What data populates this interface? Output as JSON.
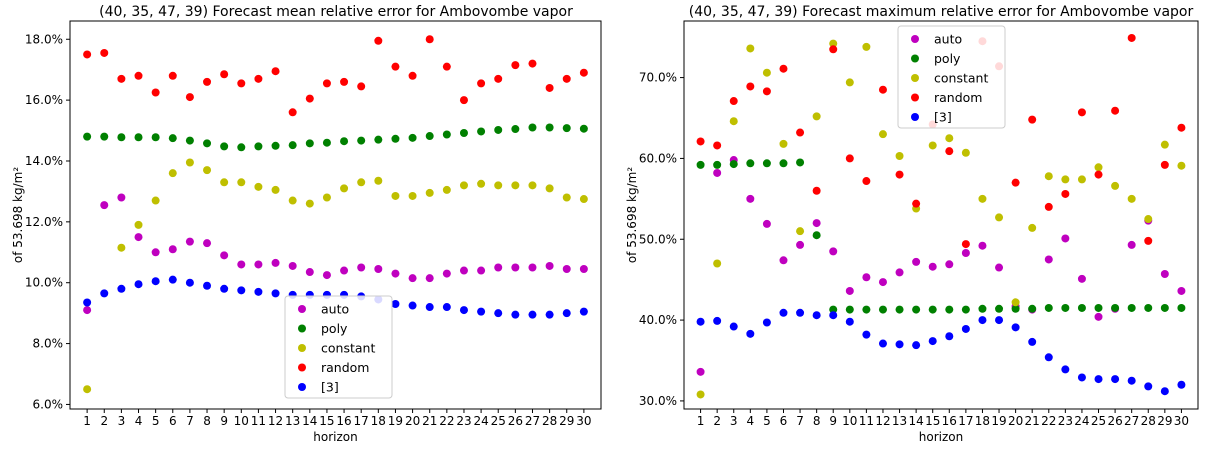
{
  "chart_data": [
    {
      "type": "scatter",
      "title": "(40, 35, 47, 39) Forecast mean relative error for Ambovombe vapor",
      "xlabel": "horizon",
      "ylabel": "of 53.698 kg/m²",
      "x": [
        1,
        2,
        3,
        4,
        5,
        6,
        7,
        8,
        9,
        10,
        11,
        12,
        13,
        14,
        15,
        16,
        17,
        18,
        19,
        20,
        21,
        22,
        23,
        24,
        25,
        26,
        27,
        28,
        29,
        30
      ],
      "xlim": [
        0,
        31
      ],
      "ylim": [
        5.85,
        18.6
      ],
      "yticks": [
        6,
        8,
        10,
        12,
        14,
        16,
        18
      ],
      "ytick_labels": [
        "6.0%",
        "8.0%",
        "10.0%",
        "12.0%",
        "14.0%",
        "16.0%",
        "18.0%"
      ],
      "y_unit": "%",
      "grid": false,
      "legend_position": "lower-center",
      "series": [
        {
          "name": "auto",
          "color": "#bf00bf",
          "values": [
            9.1,
            12.55,
            12.8,
            11.5,
            11.0,
            11.1,
            11.35,
            11.3,
            10.9,
            10.6,
            10.6,
            10.65,
            10.55,
            10.35,
            10.25,
            10.4,
            10.5,
            10.45,
            10.3,
            10.15,
            10.15,
            10.3,
            10.4,
            10.4,
            10.5,
            10.5,
            10.5,
            10.55,
            10.45,
            10.45
          ]
        },
        {
          "name": "poly",
          "color": "#008000",
          "values": [
            14.8,
            14.8,
            14.78,
            14.78,
            14.78,
            14.75,
            14.67,
            14.58,
            14.48,
            14.45,
            14.48,
            14.5,
            14.52,
            14.58,
            14.6,
            14.65,
            14.67,
            14.7,
            14.73,
            14.76,
            14.82,
            14.87,
            14.92,
            14.97,
            15.02,
            15.05,
            15.1,
            15.1,
            15.08,
            15.06
          ]
        },
        {
          "name": "constant",
          "color": "#bfbf00",
          "values": [
            6.5,
            null,
            11.15,
            11.9,
            12.7,
            13.6,
            13.95,
            13.7,
            13.3,
            13.3,
            13.15,
            13.05,
            12.7,
            12.6,
            12.8,
            13.1,
            13.3,
            13.35,
            12.85,
            12.85,
            12.95,
            13.05,
            13.2,
            13.25,
            13.2,
            13.2,
            13.2,
            13.1,
            12.8,
            12.75
          ]
        },
        {
          "name": "random",
          "color": "#ff0000",
          "values": [
            17.5,
            17.55,
            16.7,
            16.8,
            16.25,
            16.8,
            16.1,
            16.6,
            16.85,
            16.55,
            16.7,
            16.95,
            15.6,
            16.05,
            16.55,
            16.6,
            16.45,
            17.95,
            17.1,
            16.8,
            18.0,
            17.1,
            16.0,
            16.55,
            16.7,
            17.15,
            17.2,
            16.4,
            16.7,
            16.9
          ]
        },
        {
          "name": "[3]",
          "color": "#0000ff",
          "values": [
            9.35,
            9.65,
            9.8,
            9.95,
            10.05,
            10.1,
            10.0,
            9.9,
            9.8,
            9.75,
            9.7,
            9.65,
            9.6,
            9.6,
            9.6,
            9.6,
            9.55,
            9.45,
            9.3,
            9.25,
            9.2,
            9.2,
            9.1,
            9.05,
            9.0,
            8.95,
            8.95,
            8.95,
            9.0,
            9.05
          ]
        }
      ]
    },
    {
      "type": "scatter",
      "title": "(40, 35, 47, 39) Forecast maximum relative error for Ambovombe vapor",
      "xlabel": "horizon",
      "ylabel": "of 53.698 kg/m²",
      "x": [
        1,
        2,
        3,
        4,
        5,
        6,
        7,
        8,
        9,
        10,
        11,
        12,
        13,
        14,
        15,
        16,
        17,
        18,
        19,
        20,
        21,
        22,
        23,
        24,
        25,
        26,
        27,
        28,
        29,
        30
      ],
      "xlim": [
        0,
        31
      ],
      "ylim": [
        29.0,
        77.0
      ],
      "yticks": [
        30,
        40,
        50,
        60,
        70
      ],
      "ytick_labels": [
        "30.0%",
        "40.0%",
        "50.0%",
        "60.0%",
        "70.0%"
      ],
      "y_unit": "%",
      "grid": false,
      "legend_position": "top-center",
      "series": [
        {
          "name": "auto",
          "color": "#bf00bf",
          "values": [
            33.6,
            58.2,
            59.8,
            55.0,
            51.9,
            47.4,
            49.3,
            52.0,
            48.5,
            43.6,
            45.3,
            44.7,
            45.9,
            47.2,
            46.6,
            46.9,
            48.3,
            49.2,
            46.5,
            41.7,
            41.3,
            47.5,
            50.1,
            45.1,
            40.4,
            41.4,
            49.3,
            52.3,
            45.7,
            43.6
          ]
        },
        {
          "name": "poly",
          "color": "#008000",
          "values": [
            59.2,
            59.2,
            59.3,
            59.4,
            59.4,
            59.4,
            59.5,
            50.5,
            41.3,
            41.3,
            41.3,
            41.3,
            41.3,
            41.3,
            41.3,
            41.3,
            41.3,
            41.4,
            41.4,
            41.4,
            41.4,
            41.5,
            41.5,
            41.5,
            41.5,
            41.5,
            41.5,
            41.5,
            41.5,
            41.5
          ]
        },
        {
          "name": "constant",
          "color": "#bfbf00",
          "values": [
            30.8,
            47.0,
            64.6,
            73.6,
            70.6,
            61.8,
            51.0,
            65.2,
            74.2,
            69.4,
            73.8,
            63.0,
            60.3,
            53.8,
            61.6,
            62.5,
            60.7,
            55.0,
            52.7,
            42.2,
            51.4,
            57.8,
            57.4,
            57.4,
            58.9,
            56.6,
            55.0,
            52.5,
            61.7,
            59.1
          ]
        },
        {
          "name": "random",
          "color": "#ff0000",
          "values": [
            62.1,
            61.6,
            67.1,
            68.9,
            68.3,
            71.1,
            63.2,
            56.0,
            73.5,
            60.0,
            57.2,
            68.5,
            58.0,
            54.4,
            64.2,
            60.9,
            49.4,
            74.5,
            71.4,
            57.0,
            64.8,
            54.0,
            55.6,
            65.7,
            58.0,
            65.9,
            74.9,
            49.8,
            59.2,
            63.8
          ]
        },
        {
          "name": "[3]",
          "color": "#0000ff",
          "values": [
            39.8,
            39.9,
            39.2,
            38.3,
            39.7,
            40.9,
            40.9,
            40.6,
            40.6,
            39.8,
            38.2,
            37.1,
            37.0,
            36.9,
            37.4,
            38.0,
            38.9,
            40.0,
            40.0,
            39.1,
            37.3,
            35.4,
            33.9,
            32.9,
            32.7,
            32.7,
            32.5,
            31.8,
            31.2,
            32.0
          ]
        }
      ]
    }
  ]
}
